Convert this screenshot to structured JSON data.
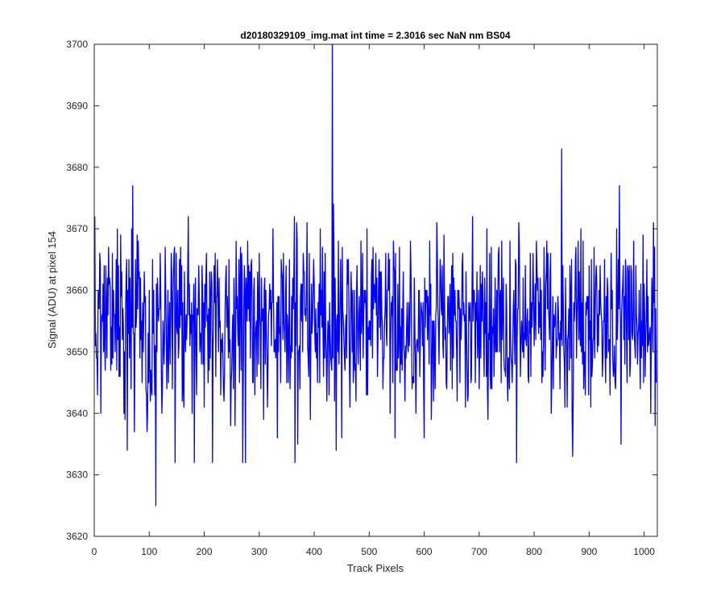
{
  "chart_data": {
    "type": "line",
    "title": "d20180329109_img.mat int time = 2.3016 sec  NaN nm BS04",
    "xlabel": "Track Pixels",
    "ylabel": "Signal (ADU) at pixel 154",
    "xlim": [
      0,
      1024
    ],
    "ylim": [
      3620,
      3700
    ],
    "xticks": [
      0,
      100,
      200,
      300,
      400,
      500,
      600,
      700,
      800,
      900,
      1000
    ],
    "yticks": [
      3620,
      3630,
      3640,
      3650,
      3660,
      3670,
      3680,
      3690,
      3700
    ],
    "grid": false,
    "legend": "none",
    "series": [
      {
        "color": "#0000ff",
        "x_start": 1,
        "x_step": 1,
        "noise_seed": 154,
        "baseline": 3655,
        "noise_amplitude": 6,
        "points": [
          [
            1,
            3672
          ],
          [
            6,
            3643
          ],
          [
            12,
            3640
          ],
          [
            18,
            3664
          ],
          [
            25,
            3656
          ],
          [
            33,
            3666
          ],
          [
            38,
            3650
          ],
          [
            42,
            3670
          ],
          [
            47,
            3646
          ],
          [
            50,
            3663
          ],
          [
            56,
            3639
          ],
          [
            60,
            3634
          ],
          [
            65,
            3662
          ],
          [
            70,
            3677
          ],
          [
            73,
            3637
          ],
          [
            80,
            3668
          ],
          [
            87,
            3645
          ],
          [
            95,
            3643
          ],
          [
            102,
            3642
          ],
          [
            110,
            3643
          ],
          [
            112,
            3625
          ],
          [
            120,
            3666
          ],
          [
            127,
            3648
          ],
          [
            135,
            3645
          ],
          [
            140,
            3666
          ],
          [
            147,
            3632
          ],
          [
            155,
            3665
          ],
          [
            162,
            3644
          ],
          [
            170,
            3663
          ],
          [
            178,
            3640
          ],
          [
            182,
            3632
          ],
          [
            190,
            3664
          ],
          [
            200,
            3641
          ],
          [
            210,
            3663
          ],
          [
            215,
            3632
          ],
          [
            230,
            3643
          ],
          [
            240,
            3664
          ],
          [
            248,
            3638
          ],
          [
            258,
            3668
          ],
          [
            270,
            3632
          ],
          [
            275,
            3632
          ],
          [
            285,
            3664
          ],
          [
            292,
            3643
          ],
          [
            300,
            3666
          ],
          [
            308,
            3639
          ],
          [
            315,
            3641
          ],
          [
            325,
            3670
          ],
          [
            333,
            3636
          ],
          [
            340,
            3665
          ],
          [
            350,
            3645
          ],
          [
            365,
            3632
          ],
          [
            370,
            3635
          ],
          [
            380,
            3666
          ],
          [
            390,
            3646
          ],
          [
            400,
            3661
          ],
          [
            410,
            3645
          ],
          [
            420,
            3666
          ],
          [
            433,
            3700
          ],
          [
            435,
            3674
          ],
          [
            440,
            3634
          ],
          [
            450,
            3636
          ],
          [
            460,
            3665
          ],
          [
            465,
            3641
          ],
          [
            470,
            3660
          ],
          [
            480,
            3648
          ],
          [
            485,
            3668
          ],
          [
            495,
            3643
          ],
          [
            505,
            3665
          ],
          [
            515,
            3646
          ],
          [
            525,
            3644
          ],
          [
            535,
            3666
          ],
          [
            547,
            3636
          ],
          [
            555,
            3667
          ],
          [
            565,
            3642
          ],
          [
            575,
            3668
          ],
          [
            585,
            3640
          ],
          [
            600,
            3636
          ],
          [
            610,
            3668
          ],
          [
            620,
            3644
          ],
          [
            630,
            3663
          ],
          [
            640,
            3645
          ],
          [
            650,
            3664
          ],
          [
            660,
            3642
          ],
          [
            670,
            3666
          ],
          [
            680,
            3643
          ],
          [
            690,
            3660
          ],
          [
            700,
            3644
          ],
          [
            710,
            3662
          ],
          [
            720,
            3646
          ],
          [
            735,
            3666
          ],
          [
            752,
            3642
          ],
          [
            768,
            3632
          ],
          [
            780,
            3662
          ],
          [
            790,
            3645
          ],
          [
            805,
            3664
          ],
          [
            815,
            3650
          ],
          [
            825,
            3666
          ],
          [
            835,
            3644
          ],
          [
            850,
            3683
          ],
          [
            860,
            3641
          ],
          [
            865,
            3664
          ],
          [
            870,
            3633
          ],
          [
            880,
            3668
          ],
          [
            890,
            3644
          ],
          [
            900,
            3664
          ],
          [
            910,
            3649
          ],
          [
            920,
            3664
          ],
          [
            930,
            3645
          ],
          [
            940,
            3666
          ],
          [
            948,
            3644
          ],
          [
            955,
            3677
          ],
          [
            958,
            3635
          ],
          [
            966,
            3665
          ],
          [
            975,
            3648
          ],
          [
            985,
            3664
          ],
          [
            995,
            3649
          ],
          [
            1005,
            3665
          ],
          [
            1012,
            3640
          ],
          [
            1017,
            3671
          ],
          [
            1020,
            3638
          ],
          [
            1022,
            3645
          ]
        ]
      }
    ]
  }
}
